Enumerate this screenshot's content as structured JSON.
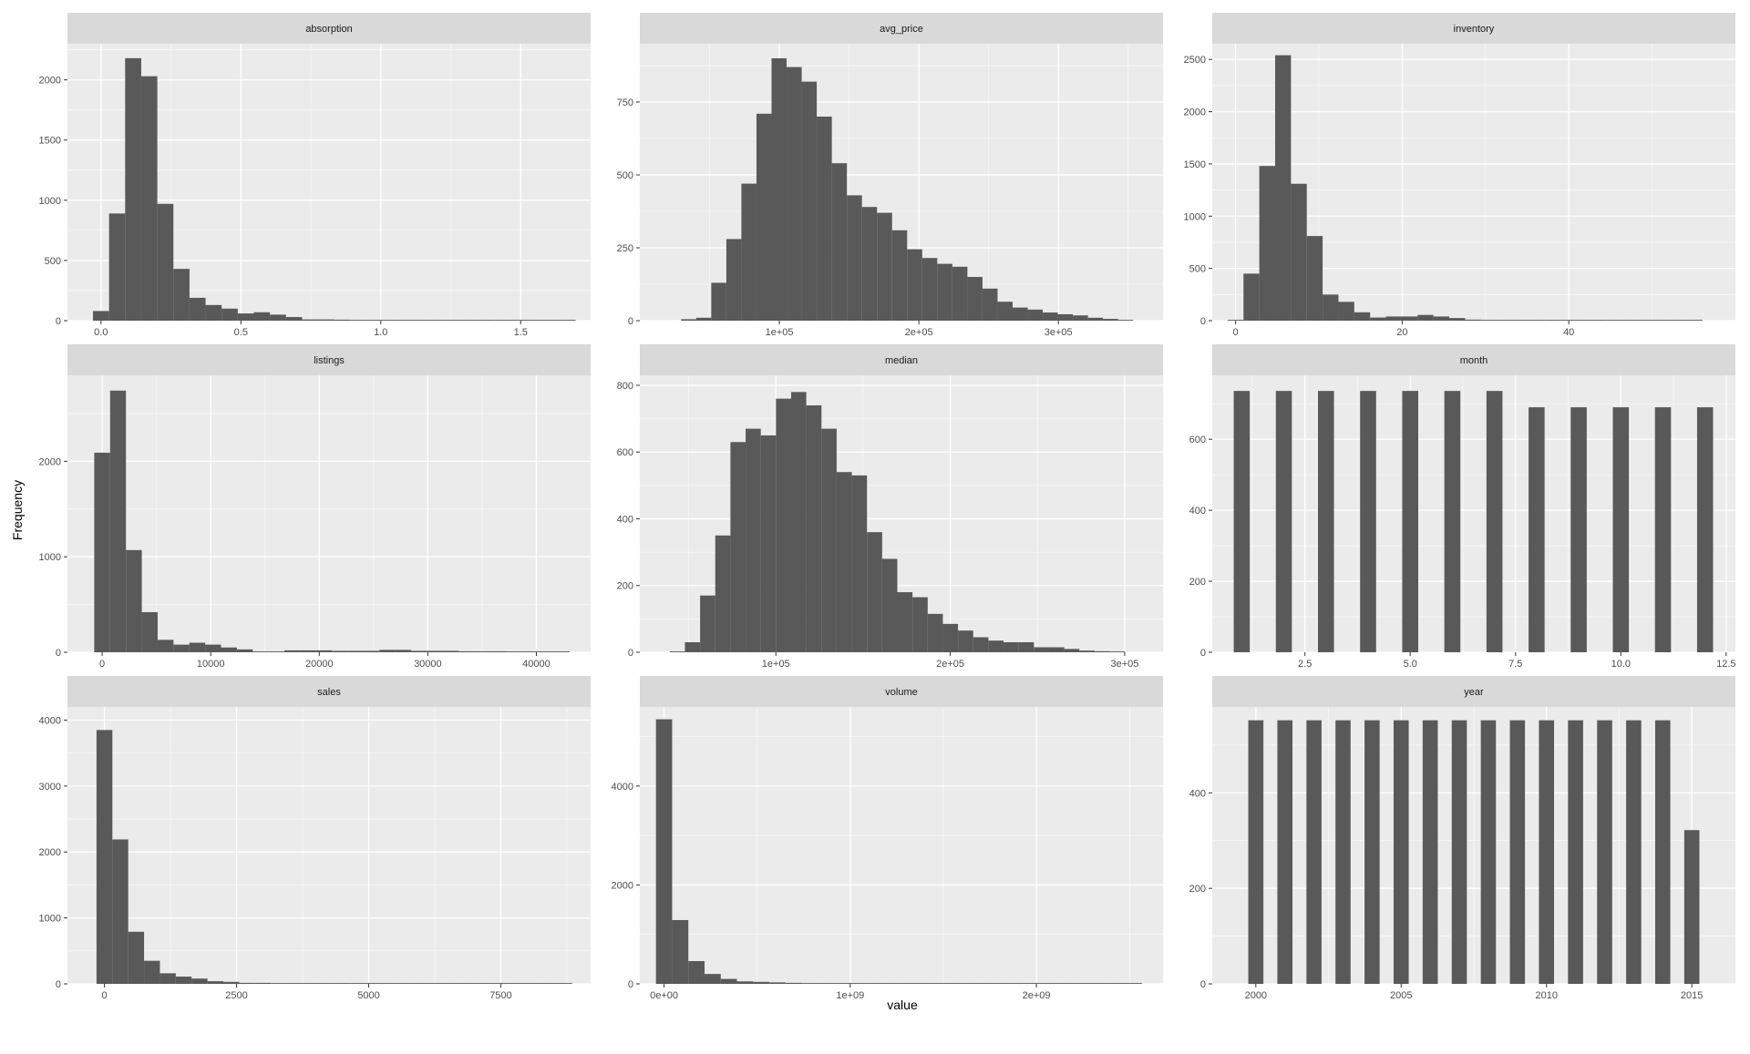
{
  "colors": {
    "panel_background": "#EBEBEB",
    "strip_background": "#D9D9D9",
    "bar_fill": "#595959",
    "grid_major": "#FFFFFF",
    "tick_text": "#4D4D4D"
  },
  "axes": {
    "xlabel": "value",
    "ylabel": "Frequency"
  },
  "chart_data": [
    {
      "type": "bar",
      "title": "absorption",
      "xlim": [
        -0.12,
        1.75
      ],
      "ylim": [
        0,
        2300
      ],
      "xticks": [
        0.0,
        0.5,
        1.0,
        1.5
      ],
      "xtick_labels": [
        "0.0",
        "0.5",
        "1.0",
        "1.5"
      ],
      "yticks": [
        0,
        500,
        1000,
        1500,
        2000
      ],
      "ytick_labels": [
        "0",
        "500",
        "1000",
        "1500",
        "2000"
      ],
      "bin_width": 0.0575,
      "bin_centers": [
        0.0,
        0.0575,
        0.115,
        0.1725,
        0.23,
        0.2875,
        0.345,
        0.4025,
        0.46,
        0.5175,
        0.575,
        0.6325,
        0.69,
        0.7475,
        0.805,
        0.8625,
        0.92,
        0.9775,
        1.035,
        1.0925,
        1.15,
        1.2075,
        1.265,
        1.3225,
        1.38,
        1.4375,
        1.495,
        1.5525,
        1.61,
        1.6675
      ],
      "counts": [
        80,
        890,
        2180,
        2030,
        970,
        430,
        190,
        130,
        100,
        60,
        70,
        50,
        30,
        10,
        10,
        8,
        6,
        5,
        5,
        3,
        2,
        2,
        0,
        0,
        0,
        0,
        0,
        0,
        0,
        3
      ]
    },
    {
      "type": "bar",
      "title": "avg_price",
      "xlim": [
        0,
        375000
      ],
      "ylim": [
        0,
        950
      ],
      "xticks": [
        100000,
        200000,
        300000
      ],
      "xtick_labels": [
        "1e+05",
        "2e+05",
        "3e+05"
      ],
      "yticks": [
        0,
        250,
        500,
        750
      ],
      "ytick_labels": [
        "0",
        "250",
        "500",
        "750"
      ],
      "bin_width": 10800,
      "bin_centers": [
        35000,
        45800,
        56600,
        67400,
        78200,
        89000,
        99800,
        110600,
        121400,
        132200,
        143000,
        153800,
        164600,
        175400,
        186200,
        197000,
        207800,
        218600,
        229400,
        240200,
        251000,
        261800,
        272600,
        283400,
        294200,
        305000,
        315800,
        326600,
        337400,
        348200
      ],
      "counts": [
        5,
        10,
        130,
        280,
        470,
        710,
        900,
        870,
        820,
        700,
        540,
        430,
        390,
        370,
        310,
        245,
        215,
        195,
        185,
        150,
        110,
        65,
        45,
        38,
        28,
        22,
        18,
        10,
        6,
        2
      ]
    },
    {
      "type": "bar",
      "title": "inventory",
      "xlim": [
        -2.8,
        60
      ],
      "ylim": [
        0,
        2650
      ],
      "xticks": [
        0,
        20,
        40
      ],
      "xtick_labels": [
        "0",
        "20",
        "40"
      ],
      "yticks": [
        0,
        500,
        1000,
        1500,
        2000,
        2500
      ],
      "ytick_labels": [
        "0",
        "500",
        "1000",
        "1500",
        "2000",
        "2500"
      ],
      "bin_width": 1.9,
      "bin_centers": [
        0.0,
        1.9,
        3.8,
        5.7,
        7.6,
        9.5,
        11.4,
        13.3,
        15.2,
        17.1,
        19.0,
        20.9,
        22.8,
        24.7,
        26.6,
        28.5,
        30.4,
        32.3,
        34.2,
        36.1,
        38.0,
        39.9,
        41.8,
        43.7,
        45.6,
        47.5,
        49.4,
        51.3,
        53.2,
        55.1
      ],
      "counts": [
        5,
        450,
        1480,
        2540,
        1310,
        810,
        250,
        180,
        80,
        30,
        40,
        40,
        55,
        40,
        25,
        10,
        5,
        5,
        4,
        4,
        3,
        3,
        2,
        2,
        2,
        2,
        2,
        2,
        2,
        2
      ]
    },
    {
      "type": "bar",
      "title": "listings",
      "xlim": [
        -3200,
        45000
      ],
      "ylim": [
        0,
        2900
      ],
      "xticks": [
        0,
        10000,
        20000,
        30000,
        40000
      ],
      "xtick_labels": [
        "0",
        "10000",
        "20000",
        "30000",
        "40000"
      ],
      "yticks": [
        0,
        1000,
        2000
      ],
      "ytick_labels": [
        "0",
        "1000",
        "2000"
      ],
      "bin_width": 1460,
      "bin_centers": [
        0,
        1460,
        2920,
        4380,
        5840,
        7300,
        8760,
        10220,
        11680,
        13140,
        14600,
        16060,
        17520,
        18980,
        20440,
        21900,
        23360,
        24820,
        26280,
        27740,
        29200,
        30660,
        32120,
        33580,
        35040,
        36500,
        37960,
        39420,
        40880,
        42340
      ],
      "counts": [
        2090,
        2740,
        1070,
        420,
        130,
        80,
        100,
        80,
        50,
        30,
        5,
        5,
        20,
        20,
        20,
        15,
        15,
        15,
        25,
        25,
        15,
        15,
        15,
        10,
        10,
        10,
        0,
        0,
        0,
        0
      ]
    },
    {
      "type": "bar",
      "title": "median",
      "xlim": [
        22000,
        322000
      ],
      "ylim": [
        0,
        830
      ],
      "xticks": [
        100000,
        200000,
        300000
      ],
      "xtick_labels": [
        "1e+05",
        "2e+05",
        "3e+05"
      ],
      "yticks": [
        0,
        200,
        400,
        600,
        800
      ],
      "ytick_labels": [
        "0",
        "200",
        "400",
        "600",
        "800"
      ],
      "bin_width": 8700,
      "bin_centers": [
        43500,
        52200,
        60900,
        69600,
        78300,
        87000,
        95700,
        104400,
        113100,
        121800,
        130500,
        139200,
        147900,
        156600,
        165300,
        174000,
        182700,
        191400,
        200100,
        208800,
        217500,
        226200,
        234900,
        243600,
        252300,
        261000,
        269700,
        278400,
        287100,
        295800
      ],
      "counts": [
        0,
        30,
        170,
        350,
        630,
        670,
        650,
        760,
        780,
        740,
        670,
        540,
        530,
        360,
        280,
        180,
        165,
        115,
        85,
        65,
        45,
        35,
        30,
        30,
        15,
        15,
        10,
        5,
        3,
        0
      ]
    },
    {
      "type": "bar",
      "title": "month",
      "xlim": [
        0.3,
        12.72
      ],
      "ylim": [
        0,
        780
      ],
      "xticks": [
        2.5,
        5.0,
        7.5,
        10.0,
        12.5
      ],
      "xtick_labels": [
        "2.5",
        "5.0",
        "7.5",
        "10.0",
        "12.5"
      ],
      "yticks": [
        0,
        200,
        400,
        600
      ],
      "ytick_labels": [
        "0",
        "200",
        "400",
        "600"
      ],
      "bin_width": 0.38,
      "bin_centers": [
        1,
        2,
        3,
        4,
        5,
        6,
        7,
        8,
        9,
        10,
        11,
        12
      ],
      "counts": [
        736,
        736,
        736,
        736,
        736,
        736,
        736,
        690,
        690,
        690,
        690,
        690
      ]
    },
    {
      "type": "bar",
      "title": "sales",
      "xlim": [
        -700,
        9200
      ],
      "ylim": [
        0,
        4200
      ],
      "xticks": [
        0,
        2500,
        5000,
        7500
      ],
      "xtick_labels": [
        "0",
        "2500",
        "5000",
        "7500"
      ],
      "yticks": [
        0,
        1000,
        2000,
        3000,
        4000
      ],
      "ytick_labels": [
        "0",
        "1000",
        "2000",
        "3000",
        "4000"
      ],
      "bin_width": 300,
      "bin_centers": [
        0,
        300,
        600,
        900,
        1200,
        1500,
        1800,
        2100,
        2400,
        2700,
        3000,
        3300,
        3600,
        3900,
        4200,
        4500,
        4800,
        5100,
        5400,
        5700,
        6000,
        6300,
        6600,
        6900,
        7200,
        7500,
        7800,
        8100,
        8400,
        8700
      ],
      "counts": [
        3850,
        2190,
        790,
        350,
        160,
        110,
        80,
        40,
        30,
        15,
        15,
        10,
        10,
        10,
        10,
        8,
        8,
        8,
        6,
        6,
        5,
        5,
        4,
        4,
        3,
        2,
        2,
        1,
        1,
        1
      ]
    },
    {
      "type": "bar",
      "title": "volume",
      "xlim": [
        -130000000,
        2680000000
      ],
      "ylim": [
        0,
        5600
      ],
      "xticks": [
        0,
        1000000000,
        2000000000
      ],
      "xtick_labels": [
        "0e+00",
        "1e+09",
        "2e+09"
      ],
      "yticks": [
        0,
        2000,
        4000
      ],
      "ytick_labels": [
        "0",
        "2000",
        "4000"
      ],
      "bin_width": 87000000,
      "bin_centers": [
        0,
        87000000,
        174000000,
        261000000,
        348000000,
        435000000,
        522000000,
        609000000,
        696000000,
        783000000,
        870000000,
        957000000,
        1044000000,
        1131000000,
        1218000000,
        1305000000,
        1392000000,
        1479000000,
        1566000000,
        1653000000,
        1740000000,
        1827000000,
        1914000000,
        2001000000,
        2088000000,
        2175000000,
        2262000000,
        2349000000,
        2436000000,
        2523000000
      ],
      "counts": [
        5350,
        1290,
        460,
        200,
        100,
        50,
        40,
        30,
        20,
        15,
        10,
        8,
        6,
        5,
        4,
        3,
        2,
        2,
        1,
        1,
        1,
        1,
        1,
        1,
        1,
        1,
        1,
        1,
        1,
        1
      ]
    },
    {
      "type": "bar",
      "title": "year",
      "xlim": [
        1998.5,
        2016.5
      ],
      "ylim": [
        0,
        580
      ],
      "xticks": [
        2000,
        2005,
        2010,
        2015
      ],
      "xtick_labels": [
        "2000",
        "2005",
        "2010",
        "2015"
      ],
      "yticks": [
        0,
        200,
        400
      ],
      "ytick_labels": [
        "0",
        "200",
        "400"
      ],
      "bin_width": 0.52,
      "bin_centers": [
        2000,
        2001,
        2002,
        2003,
        2004,
        2005,
        2006,
        2007,
        2008,
        2009,
        2010,
        2011,
        2012,
        2013,
        2014,
        2015
      ],
      "counts": [
        552,
        552,
        552,
        552,
        552,
        552,
        552,
        552,
        552,
        552,
        552,
        552,
        552,
        552,
        552,
        322
      ]
    }
  ]
}
